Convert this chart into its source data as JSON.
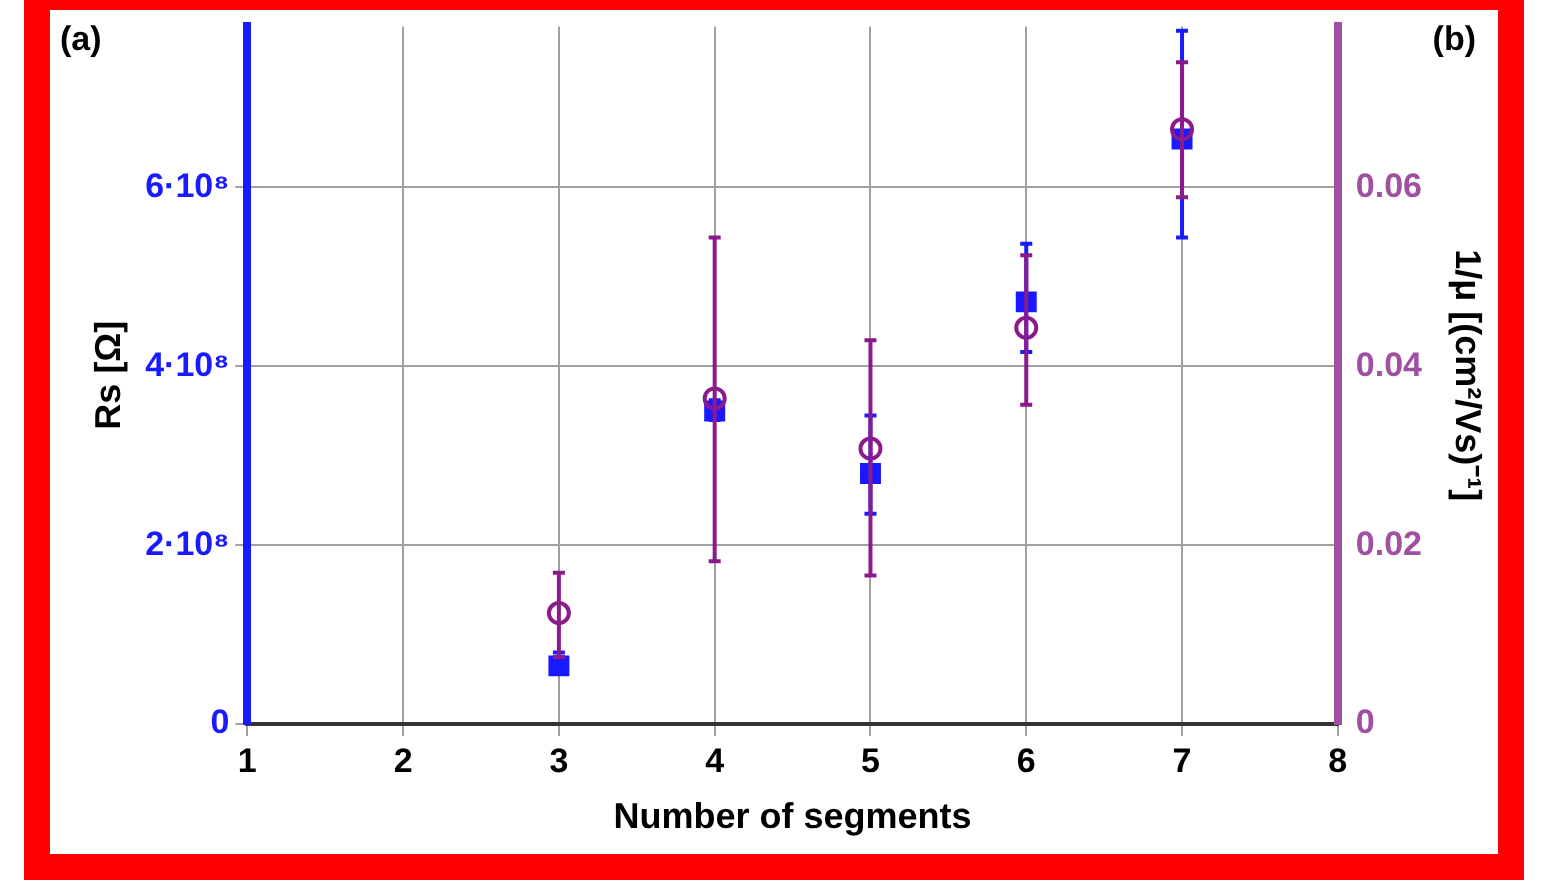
{
  "chart_data": {
    "type": "scatter",
    "xlabel": "Number of segments",
    "ylabel": "Rs [Ω]",
    "y2label": "1/μ [(cm²/Vs)⁻¹]",
    "annotations": [
      "(a)",
      "(b)"
    ],
    "xlim": [
      1,
      8
    ],
    "xticks": [
      1,
      2,
      3,
      4,
      5,
      6,
      7,
      8
    ],
    "ylim": [
      0,
      780000000
    ],
    "yticks": [
      0,
      {
        "value": 200000000,
        "label": "2·10⁸"
      },
      {
        "value": 400000000,
        "label": "4·10⁸"
      },
      {
        "value": 600000000,
        "label": "6·10⁸"
      }
    ],
    "y2lim": [
      0,
      0.078
    ],
    "y2ticks": [
      0,
      0.02,
      0.04,
      0.06
    ],
    "grid": true,
    "legend": false,
    "series": [
      {
        "color": "#1a1aff",
        "marker": "square",
        "x": [
          3,
          4,
          5,
          6,
          7
        ],
        "values": [
          65000000,
          350000000,
          280000000,
          472000000,
          654000000
        ],
        "errors": [
          [
            58000000,
            80000000
          ],
          [
            340000000,
            362000000
          ],
          [
            235000000,
            345000000
          ],
          [
            416000000,
            537000000
          ],
          [
            544000000,
            775000000
          ]
        ]
      },
      {
        "color": "#8b1a8b",
        "marker": "circle",
        "axis": "y2",
        "x": [
          3,
          4,
          5,
          6,
          7
        ],
        "values": [
          0.0124,
          0.0364,
          0.0308,
          0.0443,
          0.0665
        ],
        "errors": [
          [
            0.0075,
            0.0169
          ],
          [
            0.0182,
            0.0544
          ],
          [
            0.0166,
            0.0429
          ],
          [
            0.0357,
            0.0524
          ],
          [
            0.0589,
            0.074
          ]
        ]
      }
    ]
  }
}
